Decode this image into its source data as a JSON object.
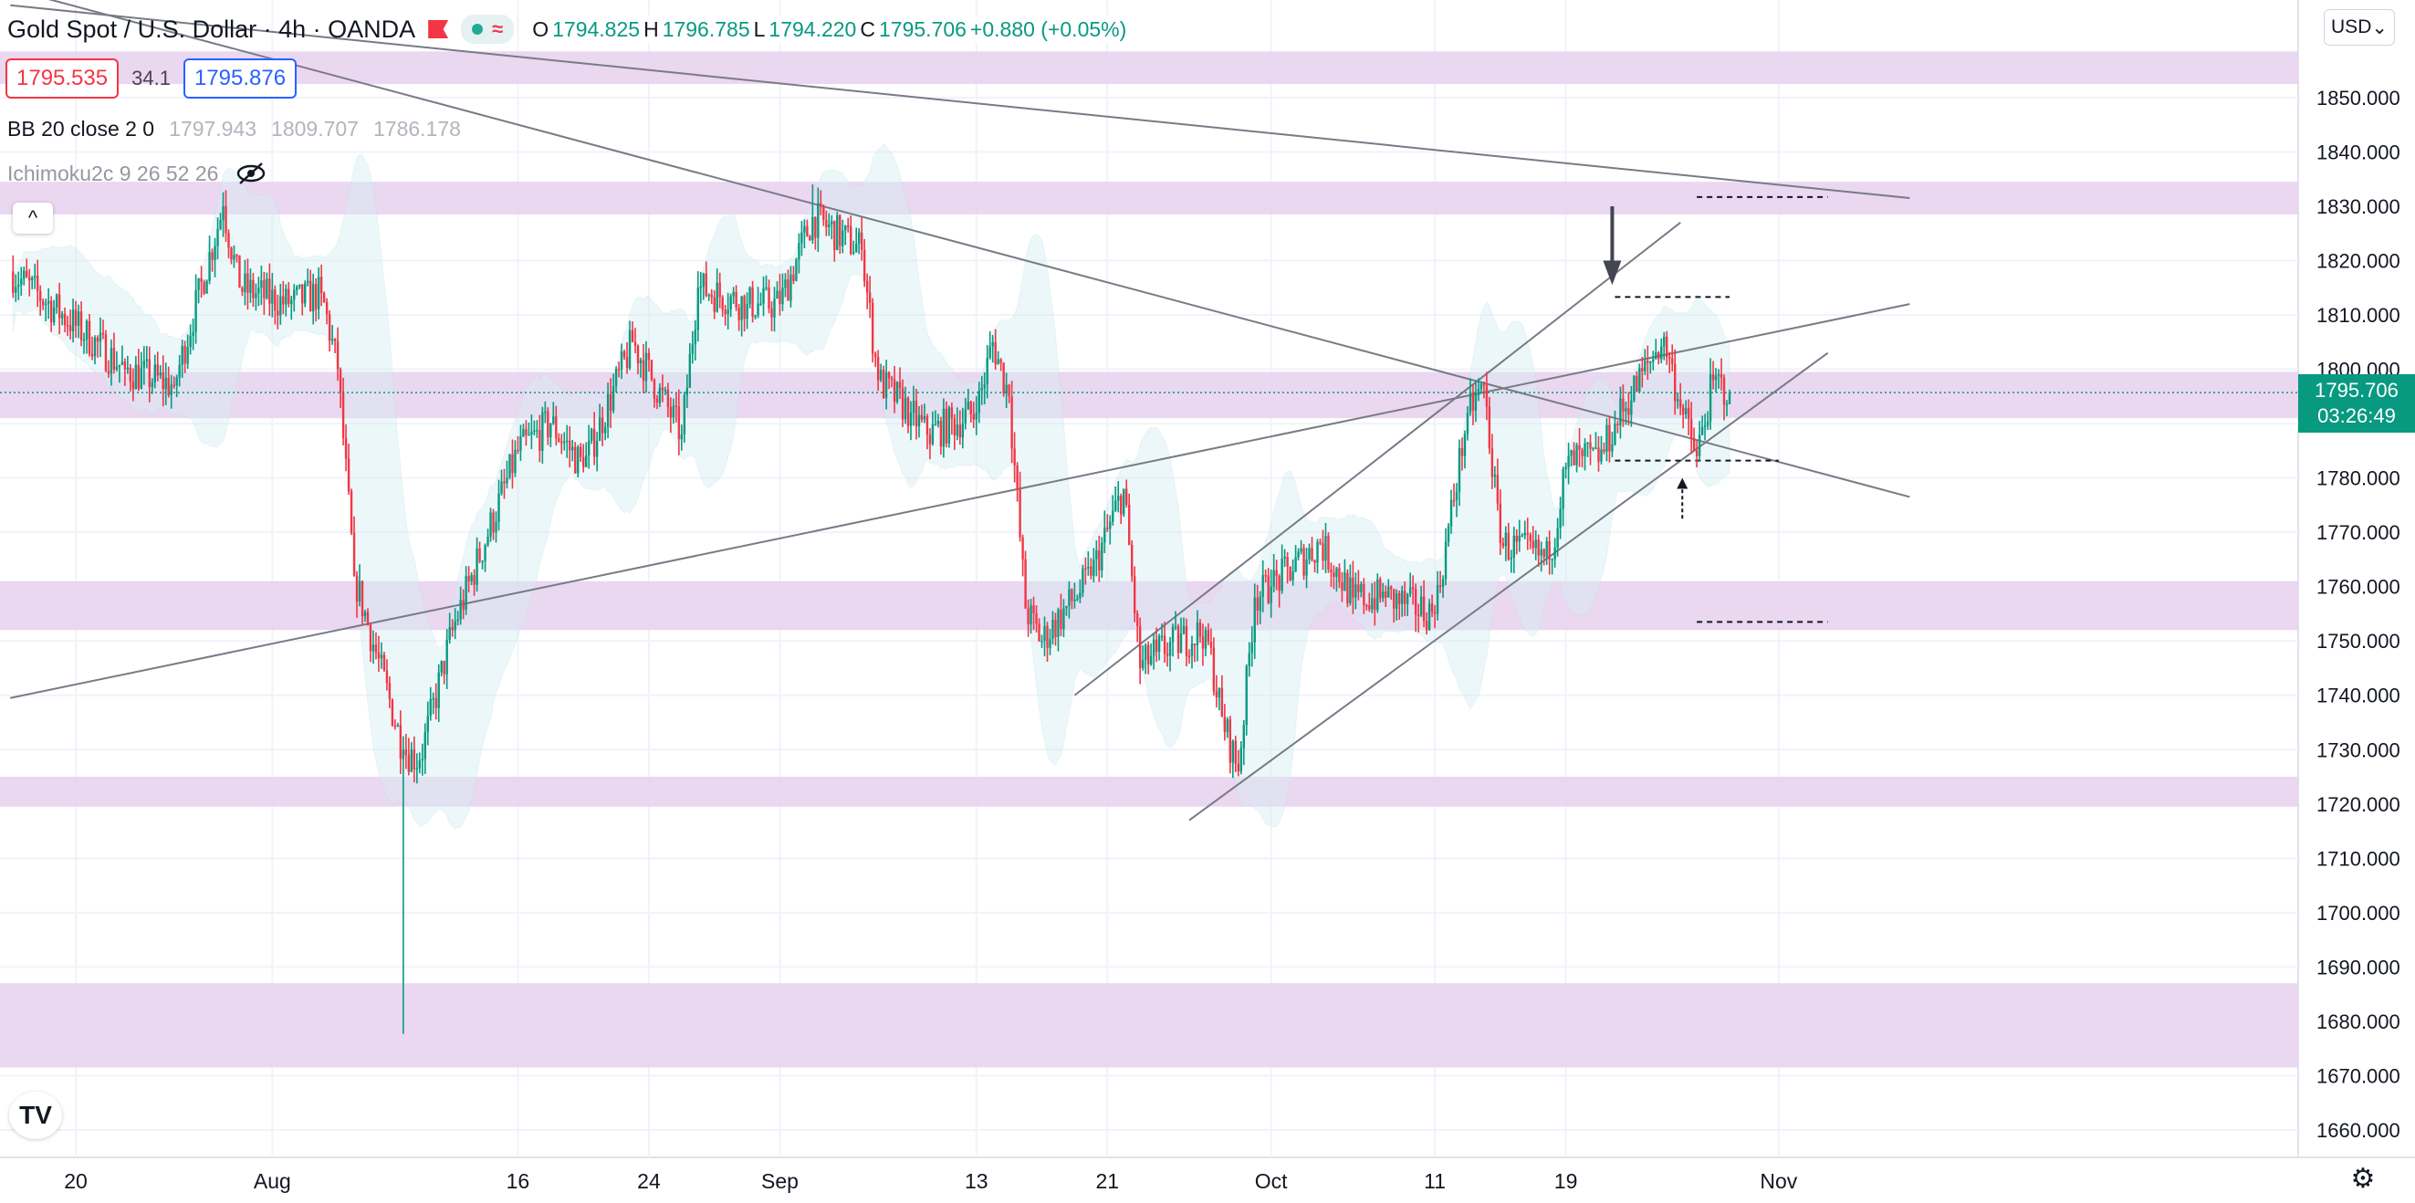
{
  "header": {
    "title": "Gold Spot / U.S. Dollar · 4h · OANDA",
    "open_label": "O",
    "open": "1794.825",
    "high_label": "H",
    "high": "1796.785",
    "low_label": "L",
    "low": "1794.220",
    "close_label": "C",
    "close": "1795.706",
    "change": "+0.880 (+0.05%)",
    "sell_price": "1795.535",
    "spread": "34.1",
    "buy_price": "1795.876"
  },
  "indicators": {
    "bb": {
      "name": "BB 20 close 2 0",
      "values": [
        "1797.943",
        "1809.707",
        "1786.178"
      ]
    },
    "ichimoku": {
      "name": "Ichimoku2c 9 26 52 26"
    }
  },
  "price_axis": {
    "currency": "USD",
    "last_price": "1795.706",
    "countdown": "03:26:49"
  },
  "colors": {
    "up": "#089981",
    "down": "#f23645",
    "zone": "#e8d3ee",
    "cloud": "#d7eef3",
    "line": "#787b86",
    "last_price_bg": "#089981"
  },
  "icons": {
    "collapse": "chevron-up-icon",
    "logo": "tradingview-logo-icon",
    "settings": "gear-icon",
    "visibility": "eye-off-icon"
  },
  "chart_data": {
    "type": "candlestick",
    "timeframe": "4h",
    "x_tick_labels": [
      "20",
      "Aug",
      "16",
      "24",
      "Sep",
      "13",
      "21",
      "Oct",
      "11",
      "19",
      "Nov"
    ],
    "y_tick_labels": [
      "1850.000",
      "1840.000",
      "1830.000",
      "1820.000",
      "1810.000",
      "1800.000",
      "1790.000",
      "1780.000",
      "1770.000",
      "1760.000",
      "1750.000",
      "1740.000",
      "1730.000",
      "1720.000",
      "1710.000",
      "1700.000",
      "1690.000",
      "1680.000",
      "1670.000",
      "1660.000"
    ],
    "ylim": [
      1656.3,
      1864.6
    ],
    "last_price": 1795.706,
    "anchors": [
      {
        "date": "2021-07-16",
        "close": 1818
      },
      {
        "date": "2021-07-20",
        "close": 1808
      },
      {
        "date": "2021-07-23",
        "close": 1800
      },
      {
        "date": "2021-07-26",
        "close": 1797
      },
      {
        "date": "2021-07-29",
        "close": 1830
      },
      {
        "date": "2021-07-30",
        "close": 1815
      },
      {
        "date": "2021-08-02",
        "close": 1812
      },
      {
        "date": "2021-08-04",
        "close": 1814
      },
      {
        "date": "2021-08-05",
        "close": 1800
      },
      {
        "date": "2021-08-06",
        "close": 1762
      },
      {
        "date": "2021-08-09",
        "close": 1730
      },
      {
        "date": "2021-08-10",
        "close": 1728
      },
      {
        "date": "2021-08-12",
        "close": 1752
      },
      {
        "date": "2021-08-16",
        "close": 1785
      },
      {
        "date": "2021-08-18",
        "close": 1790
      },
      {
        "date": "2021-08-20",
        "close": 1782
      },
      {
        "date": "2021-08-23",
        "close": 1805
      },
      {
        "date": "2021-08-26",
        "close": 1788
      },
      {
        "date": "2021-08-27",
        "close": 1815
      },
      {
        "date": "2021-08-30",
        "close": 1812
      },
      {
        "date": "2021-09-01",
        "close": 1812
      },
      {
        "date": "2021-09-03",
        "close": 1828
      },
      {
        "date": "2021-09-06",
        "close": 1822
      },
      {
        "date": "2021-09-07",
        "close": 1798
      },
      {
        "date": "2021-09-09",
        "close": 1792
      },
      {
        "date": "2021-09-10",
        "close": 1788
      },
      {
        "date": "2021-09-13",
        "close": 1792
      },
      {
        "date": "2021-09-14",
        "close": 1805
      },
      {
        "date": "2021-09-15",
        "close": 1795
      },
      {
        "date": "2021-09-16",
        "close": 1756
      },
      {
        "date": "2021-09-17",
        "close": 1750
      },
      {
        "date": "2021-09-20",
        "close": 1762
      },
      {
        "date": "2021-09-22",
        "close": 1778
      },
      {
        "date": "2021-09-23",
        "close": 1745
      },
      {
        "date": "2021-09-24",
        "close": 1748
      },
      {
        "date": "2021-09-27",
        "close": 1752
      },
      {
        "date": "2021-09-28",
        "close": 1736
      },
      {
        "date": "2021-09-29",
        "close": 1726
      },
      {
        "date": "2021-09-30",
        "close": 1758
      },
      {
        "date": "2021-10-01",
        "close": 1760
      },
      {
        "date": "2021-10-04",
        "close": 1768
      },
      {
        "date": "2021-10-06",
        "close": 1758
      },
      {
        "date": "2021-10-08",
        "close": 1758
      },
      {
        "date": "2021-10-11",
        "close": 1755
      },
      {
        "date": "2021-10-13",
        "close": 1792
      },
      {
        "date": "2021-10-14",
        "close": 1797
      },
      {
        "date": "2021-10-15",
        "close": 1768
      },
      {
        "date": "2021-10-18",
        "close": 1765
      },
      {
        "date": "2021-10-19",
        "close": 1782
      },
      {
        "date": "2021-10-20",
        "close": 1784
      },
      {
        "date": "2021-10-21",
        "close": 1783
      },
      {
        "date": "2021-10-22",
        "close": 1790
      },
      {
        "date": "2021-10-25",
        "close": 1806
      },
      {
        "date": "2021-10-26",
        "close": 1793
      },
      {
        "date": "2021-10-27",
        "close": 1784
      },
      {
        "date": "2021-10-28",
        "close": 1798
      },
      {
        "date": "2021-10-29",
        "close": 1795.706
      }
    ],
    "extremes": {
      "low": 1677.7,
      "high": 1834
    }
  }
}
